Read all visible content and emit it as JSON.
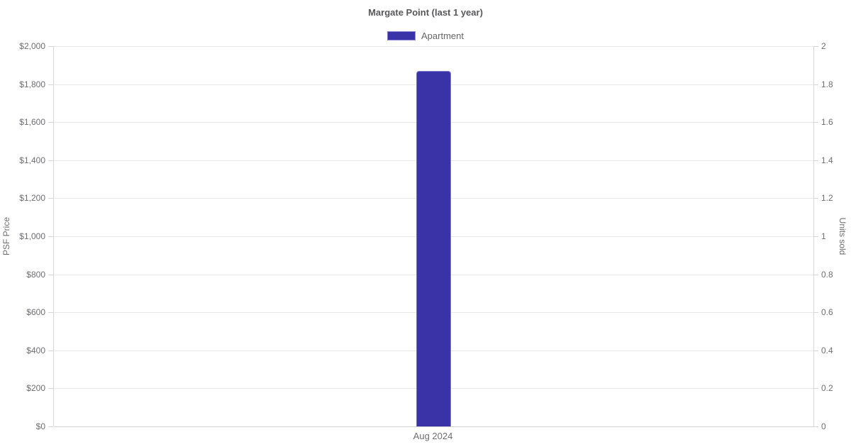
{
  "header": {
    "title": "Margate Point (last 1 year)"
  },
  "legend": {
    "items": [
      {
        "label": "Apartment",
        "color": "#3933a7"
      }
    ]
  },
  "chart_data": {
    "type": "bar",
    "title": "Margate Point (last 1 year)",
    "categories": [
      "Aug 2024"
    ],
    "series": [
      {
        "name": "Apartment",
        "axis": "left",
        "values": [
          1869
        ],
        "color": "#3933a7"
      }
    ],
    "left_axis": {
      "label": "PSF Price",
      "min": 0,
      "max": 2000,
      "tick_step": 200,
      "tick_labels": [
        "$0",
        "$200",
        "$400",
        "$600",
        "$800",
        "$1,000",
        "$1,200",
        "$1,400",
        "$1,600",
        "$1,800",
        "$2,000"
      ]
    },
    "right_axis": {
      "label": "Units sold",
      "min": 0,
      "max": 2,
      "tick_step": 0.2,
      "tick_labels": [
        "0",
        "0.2",
        "0.4",
        "0.6",
        "0.8",
        "1",
        "1.2",
        "1.4",
        "1.6",
        "1.8",
        "2"
      ]
    },
    "grid": true,
    "legend_position": "top"
  },
  "colors": {
    "bar": "#3933a7",
    "bar_border": "#7d79c7",
    "title_text": "#58585c",
    "tick_text": "#6e6e73",
    "gridline": "#e8e8e8",
    "axis_line": "#d6d6d6"
  }
}
